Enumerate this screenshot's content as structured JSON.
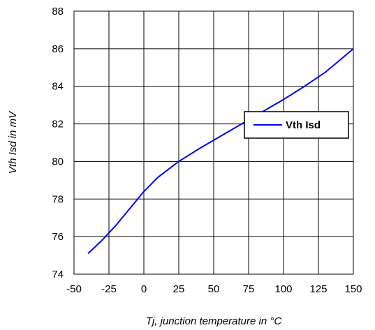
{
  "chart_data": {
    "type": "line",
    "xlabel": "Tj, junction temperature in °C",
    "ylabel": "Vth Isd in mV",
    "xlim": [
      -50,
      150
    ],
    "ylim": [
      74,
      88
    ],
    "xticks": [
      -50,
      -25,
      0,
      25,
      50,
      75,
      100,
      125,
      150
    ],
    "yticks": [
      74,
      76,
      78,
      80,
      82,
      84,
      86,
      88
    ],
    "grid": true,
    "legend": {
      "placement": "right",
      "entries": [
        "Vth Isd"
      ]
    },
    "series": [
      {
        "name": "Vth Isd",
        "color": "#0000ff",
        "x": [
          -40,
          -30,
          -20,
          -10,
          0,
          10,
          25,
          40,
          55,
          70,
          85,
          100,
          115,
          130,
          150
        ],
        "y": [
          75.1,
          75.8,
          76.6,
          77.5,
          78.4,
          79.15,
          80.0,
          80.7,
          81.35,
          82.0,
          82.65,
          83.3,
          84.0,
          84.75,
          86.0
        ]
      }
    ]
  }
}
